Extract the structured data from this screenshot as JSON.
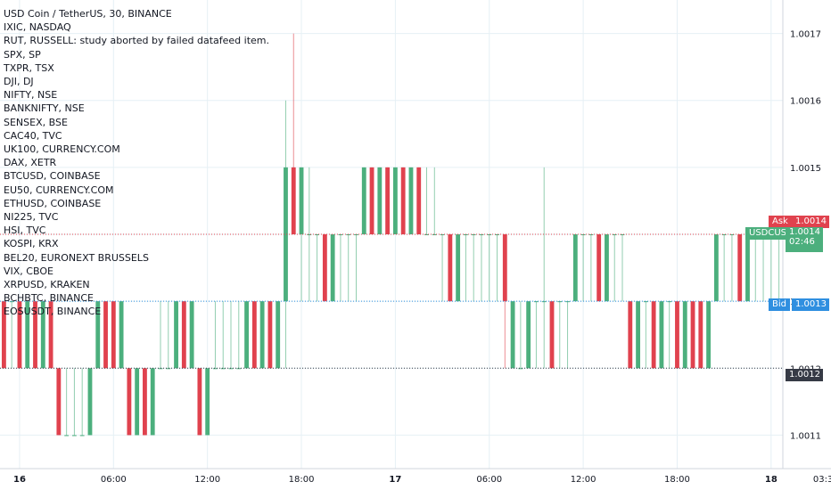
{
  "header": {
    "title": "USD Coin / TetherUS, 30, BINANCE"
  },
  "legend_items": [
    "IXIC, NASDAQ",
    "RUT, RUSSELL: study aborted by failed datafeed item.",
    "SPX, SP",
    "TXPR, TSX",
    "DJI, DJ",
    "NIFTY, NSE",
    "BANKNIFTY, NSE",
    "SENSEX, BSE",
    "CAC40, TVC",
    "UK100, CURRENCY.COM",
    "DAX, XETR",
    "BTCUSD, COINBASE",
    "EU50, CURRENCY.COM",
    "ETHUSD, COINBASE",
    "NI225, TVC",
    "HSI, TVC",
    "KOSPI, KRX",
    "BEL20, EURONEXT BRUSSELS",
    "VIX, CBOE",
    "XRPUSD, KRAKEN",
    "BCHBTC, BINANCE",
    "EOSUSDT, BINANCE"
  ],
  "price_tags": {
    "ask_label": "Ask",
    "ask_value": "1.0014",
    "symbol_label": "USDCUSDT",
    "symbol_value": "1.0014",
    "countdown": "02:46",
    "bid_label": "Bid",
    "bid_value": "1.0013",
    "last_value": "1.0012"
  },
  "colors": {
    "up": "#4caf7d",
    "down": "#e0424e",
    "ask": "#e0424e",
    "bid": "#2f8fe0",
    "grid": "#e6f0f5"
  },
  "chart_data": {
    "type": "candlestick",
    "title": "USD Coin / TetherUS, 30, BINANCE",
    "ylim": [
      1.00105,
      1.00175
    ],
    "y_ticks": [
      "1.0011",
      "1.0012",
      "1.0013",
      "1.0014",
      "1.0015",
      "1.0016",
      "1.0017"
    ],
    "x_ticks": [
      "16",
      "06:00",
      "12:00",
      "18:00",
      "17",
      "06:00",
      "12:00",
      "18:00",
      "18",
      "03:30"
    ],
    "x_tick_bars": [
      2,
      14,
      26,
      38,
      50,
      62,
      74,
      86,
      98,
      105
    ],
    "grid": true,
    "bars": [
      {
        "o": 1.0013,
        "h": 1.0013,
        "l": 1.0012,
        "c": 1.0012
      },
      {
        "o": 1.0013,
        "h": 1.0013,
        "l": 1.0012,
        "c": 1.0013
      },
      {
        "o": 1.0013,
        "h": 1.0013,
        "l": 1.0012,
        "c": 1.0012
      },
      {
        "o": 1.0012,
        "h": 1.0013,
        "l": 1.0012,
        "c": 1.0013
      },
      {
        "o": 1.0013,
        "h": 1.0013,
        "l": 1.0012,
        "c": 1.0012
      },
      {
        "o": 1.0012,
        "h": 1.0013,
        "l": 1.0012,
        "c": 1.0013
      },
      {
        "o": 1.0013,
        "h": 1.0013,
        "l": 1.0012,
        "c": 1.0012
      },
      {
        "o": 1.0012,
        "h": 1.0012,
        "l": 1.0011,
        "c": 1.0011
      },
      {
        "o": 1.0011,
        "h": 1.0012,
        "l": 1.0011,
        "c": 1.0011
      },
      {
        "o": 1.0011,
        "h": 1.0012,
        "l": 1.0011,
        "c": 1.0011
      },
      {
        "o": 1.0011,
        "h": 1.0012,
        "l": 1.0011,
        "c": 1.0011
      },
      {
        "o": 1.0011,
        "h": 1.0012,
        "l": 1.0011,
        "c": 1.0012
      },
      {
        "o": 1.0012,
        "h": 1.0013,
        "l": 1.0012,
        "c": 1.0013
      },
      {
        "o": 1.0013,
        "h": 1.0013,
        "l": 1.0012,
        "c": 1.0012
      },
      {
        "o": 1.0013,
        "h": 1.0013,
        "l": 1.0012,
        "c": 1.0012
      },
      {
        "o": 1.0012,
        "h": 1.0013,
        "l": 1.0012,
        "c": 1.0013
      },
      {
        "o": 1.0012,
        "h": 1.0012,
        "l": 1.0011,
        "c": 1.0011
      },
      {
        "o": 1.0011,
        "h": 1.0012,
        "l": 1.0011,
        "c": 1.0012
      },
      {
        "o": 1.0012,
        "h": 1.0012,
        "l": 1.0011,
        "c": 1.0011
      },
      {
        "o": 1.0011,
        "h": 1.0012,
        "l": 1.0011,
        "c": 1.0012
      },
      {
        "o": 1.0012,
        "h": 1.0013,
        "l": 1.0012,
        "c": 1.0012
      },
      {
        "o": 1.0012,
        "h": 1.0013,
        "l": 1.0012,
        "c": 1.0012
      },
      {
        "o": 1.0012,
        "h": 1.0013,
        "l": 1.0012,
        "c": 1.0013
      },
      {
        "o": 1.0013,
        "h": 1.0013,
        "l": 1.0012,
        "c": 1.0012
      },
      {
        "o": 1.0012,
        "h": 1.0013,
        "l": 1.0012,
        "c": 1.0013
      },
      {
        "o": 1.0012,
        "h": 1.0012,
        "l": 1.0011,
        "c": 1.0011
      },
      {
        "o": 1.0011,
        "h": 1.0012,
        "l": 1.0011,
        "c": 1.0012
      },
      {
        "o": 1.0012,
        "h": 1.0013,
        "l": 1.0012,
        "c": 1.0012
      },
      {
        "o": 1.0012,
        "h": 1.0013,
        "l": 1.0012,
        "c": 1.0012
      },
      {
        "o": 1.0012,
        "h": 1.0013,
        "l": 1.0012,
        "c": 1.0012
      },
      {
        "o": 1.0012,
        "h": 1.0013,
        "l": 1.0012,
        "c": 1.0012
      },
      {
        "o": 1.0012,
        "h": 1.0013,
        "l": 1.0012,
        "c": 1.0013
      },
      {
        "o": 1.0013,
        "h": 1.0013,
        "l": 1.0012,
        "c": 1.0012
      },
      {
        "o": 1.0012,
        "h": 1.0013,
        "l": 1.0012,
        "c": 1.0013
      },
      {
        "o": 1.0013,
        "h": 1.0013,
        "l": 1.0012,
        "c": 1.0012
      },
      {
        "o": 1.0012,
        "h": 1.0013,
        "l": 1.0012,
        "c": 1.0013
      },
      {
        "o": 1.0013,
        "h": 1.0016,
        "l": 1.0012,
        "c": 1.0015
      },
      {
        "o": 1.0015,
        "h": 1.0017,
        "l": 1.0014,
        "c": 1.0014
      },
      {
        "o": 1.0014,
        "h": 1.0015,
        "l": 1.0013,
        "c": 1.0015
      },
      {
        "o": 1.0014,
        "h": 1.0015,
        "l": 1.0013,
        "c": 1.0014
      },
      {
        "o": 1.0014,
        "h": 1.0014,
        "l": 1.0013,
        "c": 1.0014
      },
      {
        "o": 1.0014,
        "h": 1.0014,
        "l": 1.0013,
        "c": 1.0013
      },
      {
        "o": 1.0013,
        "h": 1.0014,
        "l": 1.0013,
        "c": 1.0014
      },
      {
        "o": 1.0014,
        "h": 1.0014,
        "l": 1.0013,
        "c": 1.0014
      },
      {
        "o": 1.0014,
        "h": 1.0014,
        "l": 1.0013,
        "c": 1.0014
      },
      {
        "o": 1.0014,
        "h": 1.0014,
        "l": 1.0013,
        "c": 1.0014
      },
      {
        "o": 1.0014,
        "h": 1.0015,
        "l": 1.0014,
        "c": 1.0015
      },
      {
        "o": 1.0015,
        "h": 1.0015,
        "l": 1.0014,
        "c": 1.0014
      },
      {
        "o": 1.0014,
        "h": 1.0015,
        "l": 1.0014,
        "c": 1.0015
      },
      {
        "o": 1.0015,
        "h": 1.0015,
        "l": 1.0014,
        "c": 1.0014
      },
      {
        "o": 1.0014,
        "h": 1.0015,
        "l": 1.0014,
        "c": 1.0015
      },
      {
        "o": 1.0015,
        "h": 1.0015,
        "l": 1.0014,
        "c": 1.0014
      },
      {
        "o": 1.0014,
        "h": 1.0015,
        "l": 1.0014,
        "c": 1.0015
      },
      {
        "o": 1.0015,
        "h": 1.0015,
        "l": 1.0014,
        "c": 1.0014
      },
      {
        "o": 1.0014,
        "h": 1.0015,
        "l": 1.0014,
        "c": 1.0014
      },
      {
        "o": 1.0014,
        "h": 1.0015,
        "l": 1.0014,
        "c": 1.0014
      },
      {
        "o": 1.0014,
        "h": 1.0014,
        "l": 1.0013,
        "c": 1.0014
      },
      {
        "o": 1.0014,
        "h": 1.0014,
        "l": 1.0013,
        "c": 1.0013
      },
      {
        "o": 1.0013,
        "h": 1.0014,
        "l": 1.0013,
        "c": 1.0014
      },
      {
        "o": 1.0014,
        "h": 1.0014,
        "l": 1.0013,
        "c": 1.0014
      },
      {
        "o": 1.0014,
        "h": 1.0014,
        "l": 1.0013,
        "c": 1.0014
      },
      {
        "o": 1.0014,
        "h": 1.0014,
        "l": 1.0013,
        "c": 1.0014
      },
      {
        "o": 1.0014,
        "h": 1.0014,
        "l": 1.0013,
        "c": 1.0014
      },
      {
        "o": 1.0014,
        "h": 1.0014,
        "l": 1.0013,
        "c": 1.0014
      },
      {
        "o": 1.0014,
        "h": 1.0014,
        "l": 1.0012,
        "c": 1.0013
      },
      {
        "o": 1.0012,
        "h": 1.0013,
        "l": 1.0012,
        "c": 1.0013
      },
      {
        "o": 1.0012,
        "h": 1.0013,
        "l": 1.0012,
        "c": 1.0012
      },
      {
        "o": 1.0012,
        "h": 1.0013,
        "l": 1.0012,
        "c": 1.0013
      },
      {
        "o": 1.0013,
        "h": 1.0013,
        "l": 1.0012,
        "c": 1.0013
      },
      {
        "o": 1.0013,
        "h": 1.0015,
        "l": 1.0012,
        "c": 1.0013
      },
      {
        "o": 1.0013,
        "h": 1.0013,
        "l": 1.0012,
        "c": 1.0012
      },
      {
        "o": 1.0013,
        "h": 1.0013,
        "l": 1.0012,
        "c": 1.0013
      },
      {
        "o": 1.0013,
        "h": 1.0013,
        "l": 1.0012,
        "c": 1.0013
      },
      {
        "o": 1.0013,
        "h": 1.0014,
        "l": 1.0013,
        "c": 1.0014
      },
      {
        "o": 1.0014,
        "h": 1.0014,
        "l": 1.0013,
        "c": 1.0014
      },
      {
        "o": 1.0014,
        "h": 1.0014,
        "l": 1.0013,
        "c": 1.0014
      },
      {
        "o": 1.0014,
        "h": 1.0014,
        "l": 1.0013,
        "c": 1.0013
      },
      {
        "o": 1.0013,
        "h": 1.0014,
        "l": 1.0013,
        "c": 1.0014
      },
      {
        "o": 1.0014,
        "h": 1.0014,
        "l": 1.0013,
        "c": 1.0014
      },
      {
        "o": 1.0014,
        "h": 1.0014,
        "l": 1.0013,
        "c": 1.0014
      },
      {
        "o": 1.0013,
        "h": 1.0013,
        "l": 1.0012,
        "c": 1.0012
      },
      {
        "o": 1.0012,
        "h": 1.0013,
        "l": 1.0012,
        "c": 1.0013
      },
      {
        "o": 1.0013,
        "h": 1.0013,
        "l": 1.0012,
        "c": 1.0013
      },
      {
        "o": 1.0013,
        "h": 1.0013,
        "l": 1.0012,
        "c": 1.0012
      },
      {
        "o": 1.0012,
        "h": 1.0013,
        "l": 1.0012,
        "c": 1.0013
      },
      {
        "o": 1.0013,
        "h": 1.0013,
        "l": 1.0012,
        "c": 1.0013
      },
      {
        "o": 1.0013,
        "h": 1.0013,
        "l": 1.0012,
        "c": 1.0012
      },
      {
        "o": 1.0012,
        "h": 1.0013,
        "l": 1.0012,
        "c": 1.0013
      },
      {
        "o": 1.0013,
        "h": 1.0013,
        "l": 1.0012,
        "c": 1.0012
      },
      {
        "o": 1.0013,
        "h": 1.0013,
        "l": 1.0012,
        "c": 1.0012
      },
      {
        "o": 1.0012,
        "h": 1.0013,
        "l": 1.0012,
        "c": 1.0013
      },
      {
        "o": 1.0013,
        "h": 1.0014,
        "l": 1.0013,
        "c": 1.0014
      },
      {
        "o": 1.0014,
        "h": 1.0014,
        "l": 1.0013,
        "c": 1.0014
      },
      {
        "o": 1.0014,
        "h": 1.0014,
        "l": 1.0013,
        "c": 1.0014
      },
      {
        "o": 1.0014,
        "h": 1.0014,
        "l": 1.0013,
        "c": 1.0013
      },
      {
        "o": 1.0013,
        "h": 1.0014,
        "l": 1.0013,
        "c": 1.0014
      },
      {
        "o": 1.0014,
        "h": 1.0014,
        "l": 1.0013,
        "c": 1.0014
      },
      {
        "o": 1.0014,
        "h": 1.0014,
        "l": 1.0013,
        "c": 1.0014
      },
      {
        "o": 1.0014,
        "h": 1.0014,
        "l": 1.0013,
        "c": 1.0014
      },
      {
        "o": 1.0014,
        "h": 1.0014,
        "l": 1.0013,
        "c": 1.0014
      }
    ]
  }
}
